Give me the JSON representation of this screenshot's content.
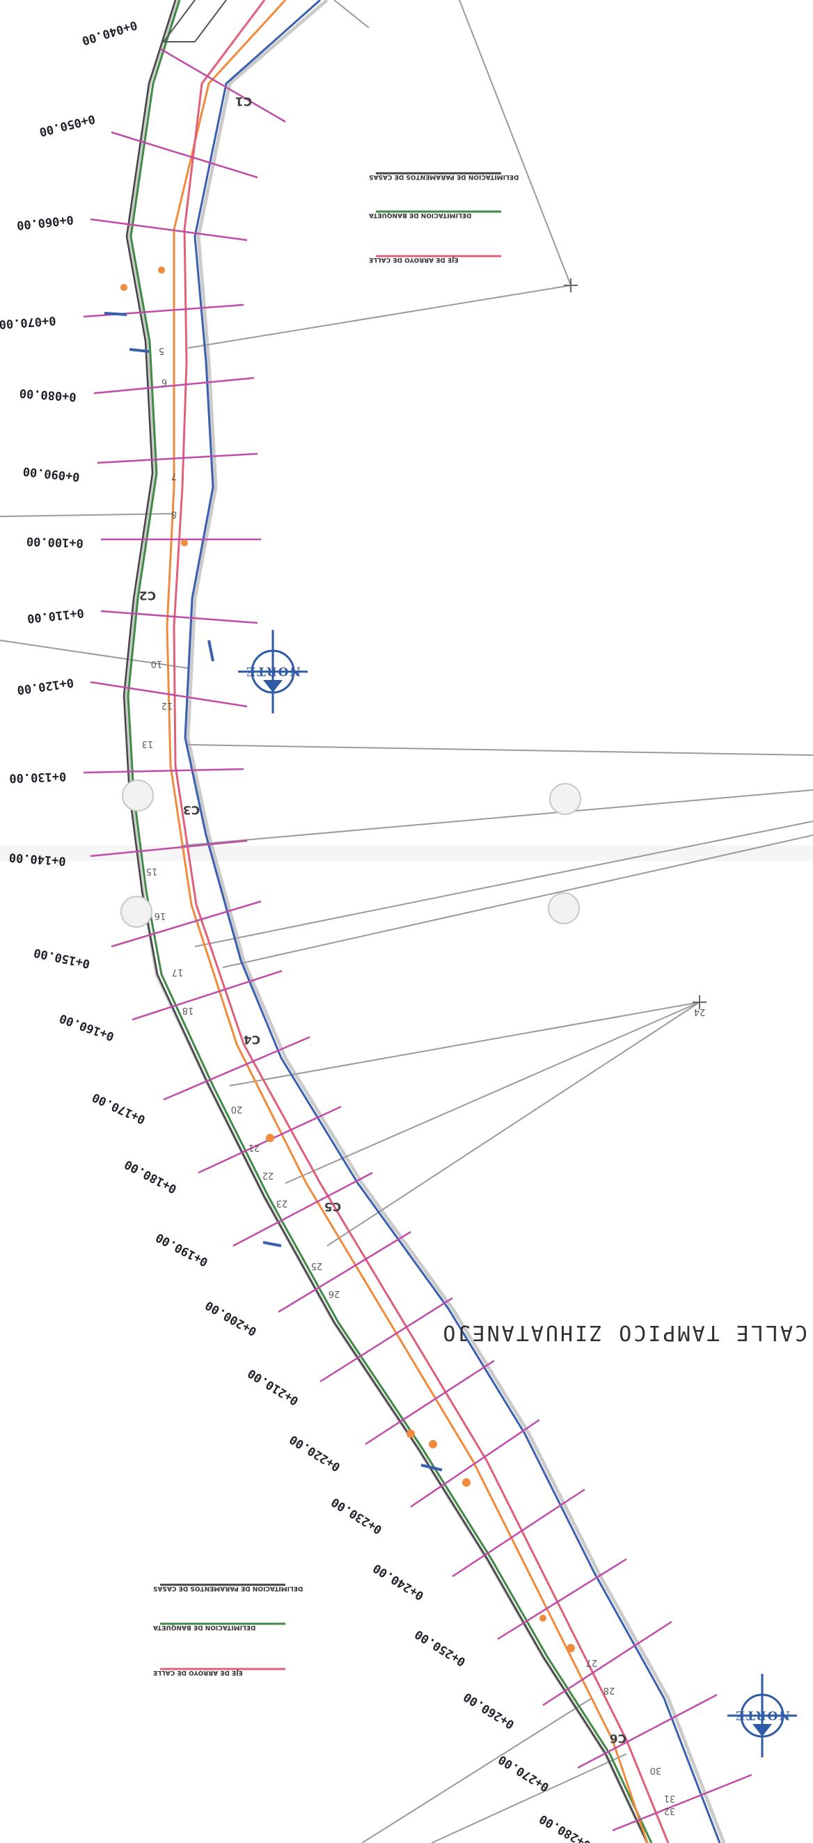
{
  "map": {
    "street_name": "CALLE TAMPICO ZIHUATANEJO",
    "north_label": "NORTE",
    "stations": [
      "0+040.00",
      "0+050.00",
      "0+060.00",
      "0+070.00",
      "0+080.00",
      "0+090.00",
      "0+100.00",
      "0+110.00",
      "0+120.00",
      "0+130.00",
      "0+140.00",
      "0+150.00",
      "0+160.00",
      "0+170.00",
      "0+180.00",
      "0+190.00",
      "0+200.00",
      "0+210.00",
      "0+220.00",
      "0+230.00",
      "0+240.00",
      "0+250.00",
      "0+260.00",
      "0+270.00",
      "0+280.00"
    ],
    "point_numbers": [
      "5",
      "6",
      "7",
      "8",
      "10",
      "12",
      "13",
      "15",
      "16",
      "17",
      "18",
      "20",
      "21",
      "22",
      "23",
      "25",
      "26",
      "27",
      "28",
      "30",
      "31",
      "32",
      "24"
    ],
    "curve_labels": [
      "C1",
      "C2",
      "C3",
      "C4",
      "C5",
      "C6"
    ],
    "legend_top": [
      {
        "text": "DELIMITACION DE PARAMENTOS DE CASAS",
        "color": "#444444"
      },
      {
        "text": "DELIMITACION DE BANQUETA",
        "color": "#3f8a45"
      },
      {
        "text": "EJE DE ARROYO DE CALLE",
        "color": "#e0607a"
      }
    ],
    "legend_bottom": [
      {
        "text": "DELIMITACION DE PARAMENTOS DE CASAS",
        "color": "#444444"
      },
      {
        "text": "DELIMITACION DE BANQUETA",
        "color": "#3f8a45"
      },
      {
        "text": "EJE DE ARROYO DE CALLE",
        "color": "#e0607a"
      }
    ],
    "colors": {
      "street_center": "#e0607a",
      "sidewalk": "#3f8a45",
      "house_line": "#444444",
      "cross_section": "#c04ca8",
      "blue_line": "#3a5fb0",
      "orange_line": "#f08a3c",
      "north": "#2e5aa8"
    }
  }
}
